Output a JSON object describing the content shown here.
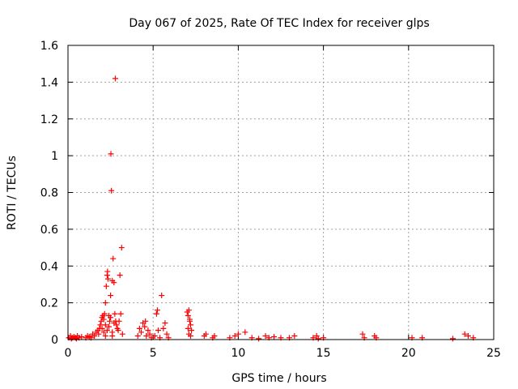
{
  "chart_data": {
    "type": "scatter",
    "title": "Day 067 of 2025, Rate Of TEC Index for receiver glps",
    "xlabel": "GPS time / hours",
    "ylabel": "ROTI / TECUs",
    "xlim": [
      0,
      25
    ],
    "ylim": [
      0,
      1.6
    ],
    "xticks": [
      0,
      5,
      10,
      15,
      20,
      25
    ],
    "xtick_labels": [
      "0",
      "5",
      "10",
      "15",
      "20",
      "25"
    ],
    "yticks": [
      0,
      0.2,
      0.4,
      0.6,
      0.8,
      1,
      1.2,
      1.4,
      1.6
    ],
    "ytick_labels": [
      "0",
      "0.2",
      "0.4",
      "0.6",
      "0.8",
      "1",
      "1.2",
      "1.4",
      "1.6"
    ],
    "grid": true,
    "marker": "+",
    "color": "#ff0000",
    "series": [
      {
        "name": "ROTI",
        "points": [
          [
            0.05,
            0.01
          ],
          [
            0.15,
            0.02
          ],
          [
            0.25,
            0.01
          ],
          [
            0.35,
            0.015
          ],
          [
            0.45,
            0.01
          ],
          [
            0.55,
            0.02
          ],
          [
            0.65,
            0.01
          ],
          [
            0.8,
            0.015
          ],
          [
            0.2,
            0.005
          ],
          [
            0.5,
            0.005
          ],
          [
            1.05,
            0.01
          ],
          [
            1.15,
            0.02
          ],
          [
            1.25,
            0.015
          ],
          [
            1.35,
            0.01
          ],
          [
            1.45,
            0.03
          ],
          [
            1.55,
            0.02
          ],
          [
            1.65,
            0.04
          ],
          [
            1.75,
            0.05
          ],
          [
            1.8,
            0.03
          ],
          [
            1.85,
            0.06
          ],
          [
            1.9,
            0.08
          ],
          [
            1.95,
            0.1
          ],
          [
            2.0,
            0.12
          ],
          [
            2.05,
            0.13
          ],
          [
            2.1,
            0.11
          ],
          [
            2.15,
            0.14
          ],
          [
            2.2,
            0.2
          ],
          [
            2.25,
            0.29
          ],
          [
            2.3,
            0.35
          ],
          [
            2.32,
            0.37
          ],
          [
            2.35,
            0.33
          ],
          [
            2.4,
            0.13
          ],
          [
            2.45,
            0.1
          ],
          [
            2.5,
            0.24
          ],
          [
            2.52,
            1.01
          ],
          [
            2.55,
            0.81
          ],
          [
            2.6,
            0.32
          ],
          [
            2.65,
            0.44
          ],
          [
            2.7,
            0.31
          ],
          [
            2.75,
            0.14
          ],
          [
            2.78,
            1.42
          ],
          [
            2.8,
            0.1
          ],
          [
            2.85,
            0.08
          ],
          [
            2.9,
            0.06
          ],
          [
            2.95,
            0.05
          ],
          [
            3.0,
            0.1
          ],
          [
            3.05,
            0.35
          ],
          [
            3.1,
            0.14
          ],
          [
            3.15,
            0.5
          ],
          [
            3.2,
            0.03
          ],
          [
            2.0,
            0.06
          ],
          [
            2.1,
            0.04
          ],
          [
            2.2,
            0.08
          ],
          [
            2.3,
            0.05
          ],
          [
            2.4,
            0.07
          ],
          [
            2.5,
            0.12
          ],
          [
            2.6,
            0.04
          ],
          [
            2.7,
            0.09
          ],
          [
            2.2,
            0.02
          ],
          [
            2.6,
            0.02
          ],
          [
            4.1,
            0.02
          ],
          [
            4.2,
            0.06
          ],
          [
            4.3,
            0.04
          ],
          [
            4.4,
            0.09
          ],
          [
            4.5,
            0.07
          ],
          [
            4.55,
            0.1
          ],
          [
            4.6,
            0.02
          ],
          [
            4.7,
            0.05
          ],
          [
            4.8,
            0.03
          ],
          [
            4.9,
            0.01
          ],
          [
            5.1,
            0.02
          ],
          [
            5.2,
            0.14
          ],
          [
            5.25,
            0.16
          ],
          [
            5.3,
            0.05
          ],
          [
            5.4,
            0.01
          ],
          [
            5.5,
            0.24
          ],
          [
            5.6,
            0.06
          ],
          [
            5.7,
            0.09
          ],
          [
            5.8,
            0.03
          ],
          [
            5.9,
            0.01
          ],
          [
            7.0,
            0.15
          ],
          [
            7.05,
            0.13
          ],
          [
            7.1,
            0.16
          ],
          [
            7.15,
            0.1
          ],
          [
            7.2,
            0.08
          ],
          [
            7.25,
            0.05
          ],
          [
            7.1,
            0.03
          ],
          [
            7.2,
            0.02
          ],
          [
            7.05,
            0.06
          ],
          [
            7.15,
            0.11
          ],
          [
            8.0,
            0.02
          ],
          [
            8.1,
            0.03
          ],
          [
            8.5,
            0.01
          ],
          [
            8.6,
            0.02
          ],
          [
            9.5,
            0.01
          ],
          [
            9.8,
            0.02
          ],
          [
            10.0,
            0.03
          ],
          [
            10.4,
            0.04
          ],
          [
            10.8,
            0.01
          ],
          [
            11.2,
            0.005
          ],
          [
            11.6,
            0.02
          ],
          [
            11.8,
            0.01
          ],
          [
            12.1,
            0.015
          ],
          [
            12.5,
            0.01
          ],
          [
            13.0,
            0.01
          ],
          [
            13.3,
            0.02
          ],
          [
            14.4,
            0.01
          ],
          [
            14.6,
            0.02
          ],
          [
            14.7,
            0.005
          ],
          [
            15.0,
            0.01
          ],
          [
            17.3,
            0.03
          ],
          [
            17.4,
            0.01
          ],
          [
            18.0,
            0.02
          ],
          [
            18.1,
            0.01
          ],
          [
            20.2,
            0.01
          ],
          [
            20.8,
            0.01
          ],
          [
            22.6,
            0.005
          ],
          [
            23.3,
            0.03
          ],
          [
            23.5,
            0.02
          ],
          [
            23.8,
            0.01
          ]
        ]
      }
    ]
  }
}
